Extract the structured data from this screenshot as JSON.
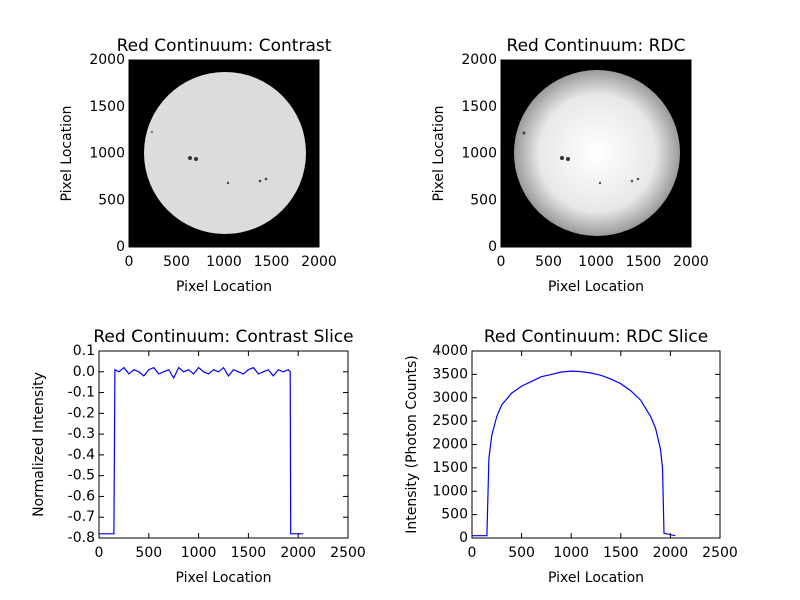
{
  "chart_data": [
    {
      "type": "image",
      "title": "Red Continuum: Contrast",
      "xlabel": "Pixel Location",
      "ylabel": "Pixel Location",
      "xlim": [
        0,
        2000
      ],
      "ylim": [
        0,
        2000
      ],
      "xticks": [
        0,
        500,
        1000,
        1500,
        2000
      ],
      "yticks": [
        0,
        500,
        1000,
        1500,
        2000
      ]
    },
    {
      "type": "image",
      "title": "Red Continuum: RDC",
      "xlabel": "Pixel Location",
      "ylabel": "Pixel Location",
      "xlim": [
        0,
        2000
      ],
      "ylim": [
        0,
        2000
      ],
      "xticks": [
        0,
        500,
        1000,
        1500,
        2000
      ],
      "yticks": [
        0,
        500,
        1000,
        1500,
        2000
      ]
    },
    {
      "type": "line",
      "title": "Red Continuum: Contrast Slice",
      "xlabel": "Pixel Location",
      "ylabel": "Normalized Intensity",
      "xlim": [
        0,
        2500
      ],
      "ylim": [
        -0.8,
        0.1
      ],
      "xticks": [
        0,
        500,
        1000,
        1500,
        2000,
        2500
      ],
      "yticks": [
        -0.8,
        -0.7,
        -0.6,
        -0.5,
        -0.4,
        -0.3,
        -0.2,
        -0.1,
        {
          "value": 0,
          "label": "0.0"
        },
        0.1
      ],
      "x": [
        0,
        150,
        160,
        200,
        250,
        300,
        350,
        400,
        450,
        500,
        550,
        600,
        650,
        700,
        750,
        800,
        850,
        900,
        950,
        1000,
        1050,
        1100,
        1150,
        1200,
        1250,
        1300,
        1350,
        1400,
        1450,
        1500,
        1550,
        1600,
        1650,
        1700,
        1750,
        1800,
        1850,
        1900,
        1920,
        1925,
        2050
      ],
      "series": [
        {
          "color": "#0000ff",
          "values": [
            -0.78,
            -0.78,
            0.01,
            0.0,
            0.02,
            -0.01,
            0.01,
            0.0,
            -0.02,
            0.01,
            0.02,
            -0.01,
            0.0,
            0.01,
            -0.03,
            0.02,
            0.0,
            0.01,
            -0.01,
            0.02,
            0.0,
            -0.01,
            0.01,
            0.0,
            0.02,
            -0.02,
            0.01,
            0.0,
            -0.01,
            0.01,
            0.02,
            -0.01,
            0.0,
            0.01,
            -0.02,
            0.01,
            0.0,
            0.01,
            0.0,
            -0.78,
            -0.78
          ]
        }
      ]
    },
    {
      "type": "line",
      "title": "Red Continuum: RDC Slice",
      "xlabel": "Pixel Location",
      "ylabel": "Intensity (Photon Counts)",
      "xlim": [
        0,
        2500
      ],
      "ylim": [
        0,
        4000
      ],
      "xticks": [
        0,
        500,
        1000,
        1500,
        2000,
        2500
      ],
      "yticks": [
        0,
        500,
        1000,
        1500,
        2000,
        2500,
        3000,
        3500,
        4000
      ],
      "x": [
        0,
        150,
        170,
        200,
        250,
        300,
        400,
        500,
        600,
        700,
        800,
        900,
        1000,
        1100,
        1200,
        1300,
        1400,
        1500,
        1600,
        1700,
        1800,
        1850,
        1900,
        1920,
        1935,
        2050
      ],
      "series": [
        {
          "color": "#0000ff",
          "values": [
            50,
            50,
            1700,
            2200,
            2600,
            2850,
            3100,
            3250,
            3350,
            3450,
            3500,
            3550,
            3570,
            3560,
            3530,
            3480,
            3400,
            3300,
            3150,
            2950,
            2600,
            2350,
            1900,
            1500,
            100,
            50
          ]
        }
      ]
    }
  ]
}
